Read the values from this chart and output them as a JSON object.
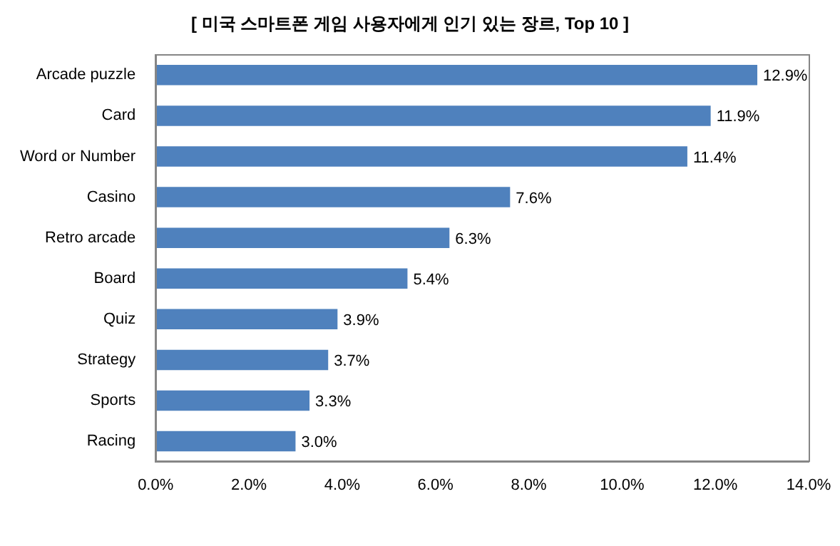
{
  "chart_data": {
    "type": "bar",
    "orientation": "horizontal",
    "title": "[ 미국 스마트폰 게임 사용자에게 인기 있는 장르, Top 10 ]",
    "categories": [
      "Arcade puzzle",
      "Card",
      "Word or Number",
      "Casino",
      "Retro arcade",
      "Board",
      "Quiz",
      "Strategy",
      "Sports",
      "Racing"
    ],
    "values": [
      12.9,
      11.9,
      11.4,
      7.6,
      6.3,
      5.4,
      3.9,
      3.7,
      3.3,
      3.0
    ],
    "value_labels": [
      "12.9%",
      "11.9%",
      "11.4%",
      "7.6%",
      "6.3%",
      "5.4%",
      "3.9%",
      "3.7%",
      "3.3%",
      "3.0%"
    ],
    "color": "#4f81bd",
    "xlim": [
      0,
      14
    ],
    "xticks": [
      {
        "value": 0,
        "label": "0.0%"
      },
      {
        "value": 2,
        "label": "2.0%"
      },
      {
        "value": 4,
        "label": "4.0%"
      },
      {
        "value": 6,
        "label": "6.0%"
      },
      {
        "value": 8,
        "label": "8.0%"
      },
      {
        "value": 10,
        "label": "10.0%"
      },
      {
        "value": 12,
        "label": "12.0%"
      },
      {
        "value": 14,
        "label": "14.0%"
      }
    ],
    "grid": false,
    "legend": false
  }
}
